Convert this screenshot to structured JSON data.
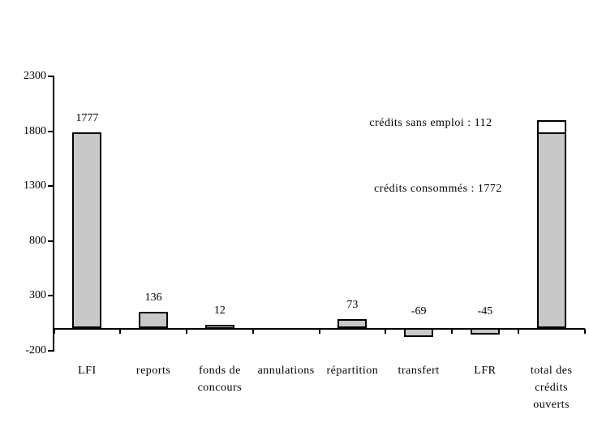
{
  "chart_data": {
    "type": "bar",
    "title": "",
    "background_color": "#FFFFFF",
    "bar_fill_color": "#C8C8C8",
    "bar_border_color": "#000000",
    "grid": false,
    "legend": false,
    "categories": [
      "LFI",
      "reports",
      "fonds de concours",
      "annulations",
      "répartition",
      "transfert",
      "LFR",
      "total des crédits ouverts"
    ],
    "values": [
      1777,
      136,
      12,
      0,
      73,
      -69,
      -45,
      1884
    ],
    "data_labels": [
      "1777",
      "136",
      "12",
      "",
      "73",
      "-69",
      "-45",
      ""
    ],
    "stacked_total_bar": {
      "category_index": 7,
      "segments": [
        {
          "name": "crédits consommés",
          "value": 1772,
          "fill": "#C8C8C8"
        },
        {
          "name": "crédits sans emploi",
          "value": 112,
          "fill": "#FFFFFF"
        }
      ]
    },
    "annotations": [
      "crédits sans emploi : 112",
      "crédits consommés : 1772"
    ],
    "y_axis": {
      "tick_labels": [
        "2300",
        "1800",
        "1300",
        "800",
        "300",
        "-200"
      ],
      "tick_values": [
        2300,
        1800,
        1300,
        800,
        300,
        -200
      ],
      "min": -200,
      "max": 2300,
      "interval": 500
    },
    "x_axis": {
      "baseline_value": 0
    }
  }
}
